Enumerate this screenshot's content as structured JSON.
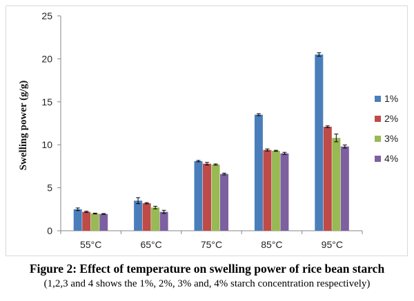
{
  "chart_data": {
    "type": "bar",
    "ylabel": "Swelling power (g/g)",
    "ylim": [
      0,
      25
    ],
    "yticks": [
      0,
      5,
      10,
      15,
      20,
      25
    ],
    "categories": [
      "55°C",
      "65°C",
      "75°C",
      "85°C",
      "95°C"
    ],
    "legend_position": "right",
    "series": [
      {
        "name": "1%",
        "color": "#4a7ebb",
        "values": [
          2.5,
          3.5,
          8.1,
          13.5,
          20.5
        ],
        "errors": [
          0.15,
          0.35,
          0.08,
          0.12,
          0.2
        ]
      },
      {
        "name": "2%",
        "color": "#be4b48",
        "values": [
          2.2,
          3.2,
          7.8,
          9.4,
          12.1
        ],
        "errors": [
          0.07,
          0.07,
          0.15,
          0.12,
          0.1
        ]
      },
      {
        "name": "3%",
        "color": "#98b954",
        "values": [
          2.0,
          2.7,
          7.7,
          9.3,
          10.8
        ],
        "errors": [
          0.05,
          0.15,
          0.07,
          0.06,
          0.45
        ]
      },
      {
        "name": "4%",
        "color": "#7d60a0",
        "values": [
          1.95,
          2.2,
          6.6,
          9.0,
          9.8
        ],
        "errors": [
          0.05,
          0.18,
          0.1,
          0.12,
          0.18
        ]
      }
    ]
  },
  "caption": {
    "title": "Figure 2: Effect of temperature on swelling power of rice bean starch",
    "subtitle": "(1,2,3 and 4 shows the 1%, 2%, 3% and, 4% starch concentration respectively)"
  }
}
